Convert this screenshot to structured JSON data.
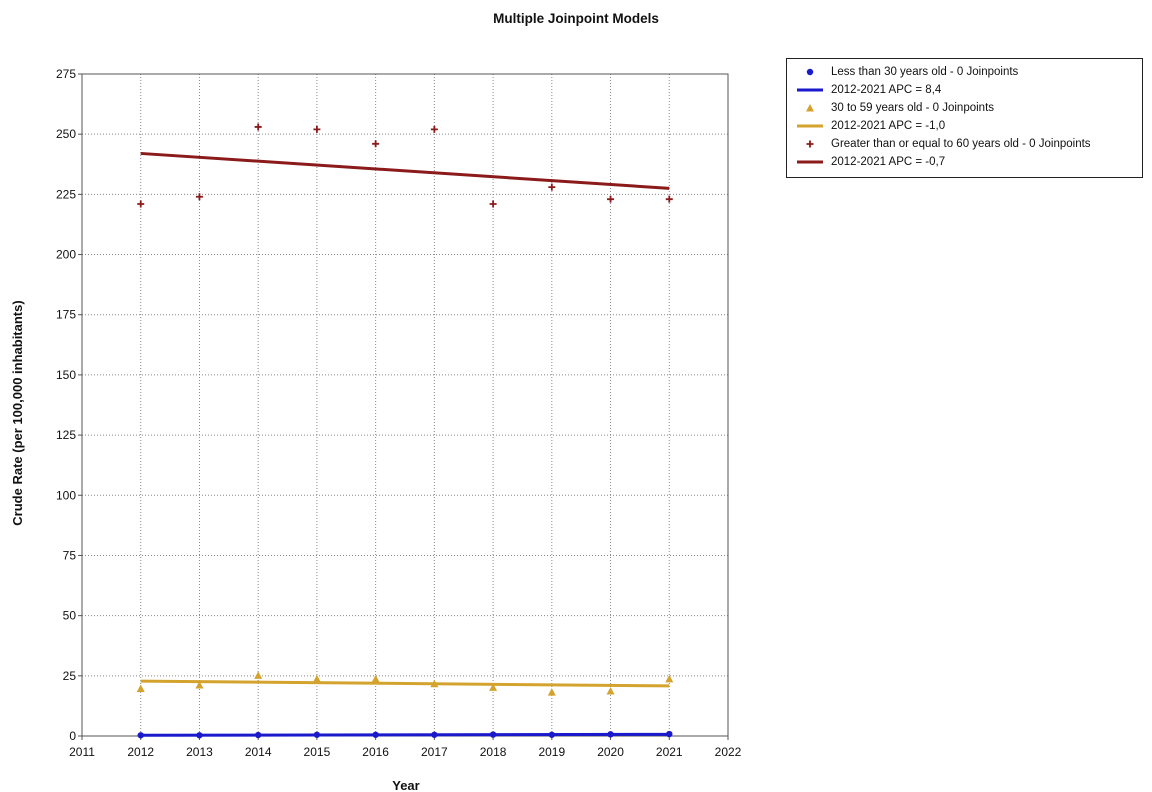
{
  "chart_data": {
    "type": "scatter",
    "title": "Multiple Joinpoint Models",
    "xlabel": "Year",
    "ylabel": "Crude Rate (per 100,000 inhabitants)",
    "xlim": [
      2011,
      2022
    ],
    "ylim": [
      0,
      275
    ],
    "x_ticks": [
      "2011",
      "2012",
      "2013",
      "2014",
      "2015",
      "2016",
      "2017",
      "2018",
      "2019",
      "2020",
      "2021",
      "2022"
    ],
    "y_ticks": [
      "0",
      "25",
      "50",
      "75",
      "100",
      "125",
      "150",
      "175",
      "200",
      "225",
      "250",
      "275"
    ],
    "grid": true,
    "legend_position": "top-right",
    "series": [
      {
        "name": "Less than 30 years old - 0 Joinpoints",
        "marker": "circle",
        "color": "#1a1acc",
        "x": [
          2012,
          2013,
          2014,
          2015,
          2016,
          2017,
          2018,
          2019,
          2020,
          2021
        ],
        "y": [
          0.3,
          0.3,
          0.4,
          0.5,
          0.5,
          0.5,
          0.6,
          0.5,
          0.7,
          0.8
        ],
        "fit": {
          "label": "2012-2021 APC  = 8,4",
          "x": [
            2012,
            2021
          ],
          "y": [
            0.3,
            0.7
          ]
        }
      },
      {
        "name": "30 to 59 years old - 0 Joinpoints",
        "marker": "triangle",
        "color": "#d4a32e",
        "x": [
          2012,
          2013,
          2014,
          2015,
          2016,
          2017,
          2018,
          2019,
          2020,
          2021
        ],
        "y": [
          19.5,
          21,
          25,
          23.5,
          23.5,
          21.5,
          20,
          18,
          18.5,
          23.5
        ],
        "fit": {
          "label": "2012-2021 APC  = -1,0",
          "x": [
            2012,
            2021
          ],
          "y": [
            22.8,
            20.8
          ]
        }
      },
      {
        "name": "Greater than or equal to 60 years old - 0 Joinpoints",
        "marker": "plus",
        "color": "#8b1a1a",
        "x": [
          2012,
          2013,
          2014,
          2015,
          2016,
          2017,
          2018,
          2019,
          2020,
          2021
        ],
        "y": [
          221,
          224,
          253,
          252,
          246,
          252,
          221,
          228,
          223,
          223
        ],
        "fit": {
          "label": "2012-2021 APC  = -0,7",
          "x": [
            2012,
            2021
          ],
          "y": [
            242,
            227.5
          ]
        }
      }
    ]
  }
}
